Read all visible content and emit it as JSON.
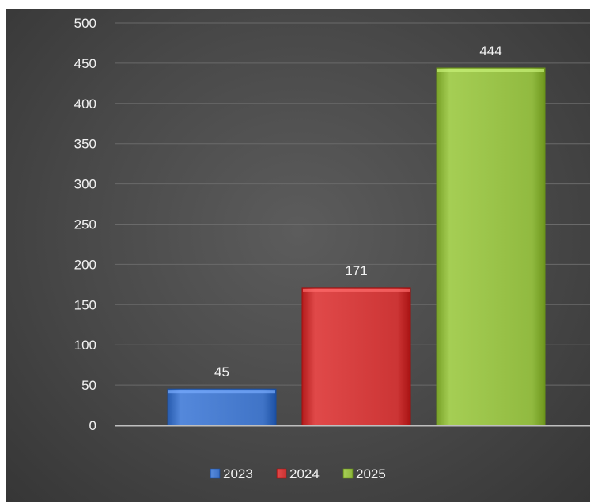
{
  "chart_data": {
    "type": "bar",
    "title": "",
    "xlabel": "",
    "ylabel": "",
    "ylim": [
      0,
      500
    ],
    "yticks": [
      0,
      50,
      100,
      150,
      200,
      250,
      300,
      350,
      400,
      450,
      500
    ],
    "grid": true,
    "legend_position": "bottom",
    "categories": [
      "2023",
      "2024",
      "2025"
    ],
    "values": [
      45,
      171,
      444
    ],
    "colors": [
      "#4a7ed1",
      "#d63f3f",
      "#9bc44a"
    ]
  }
}
